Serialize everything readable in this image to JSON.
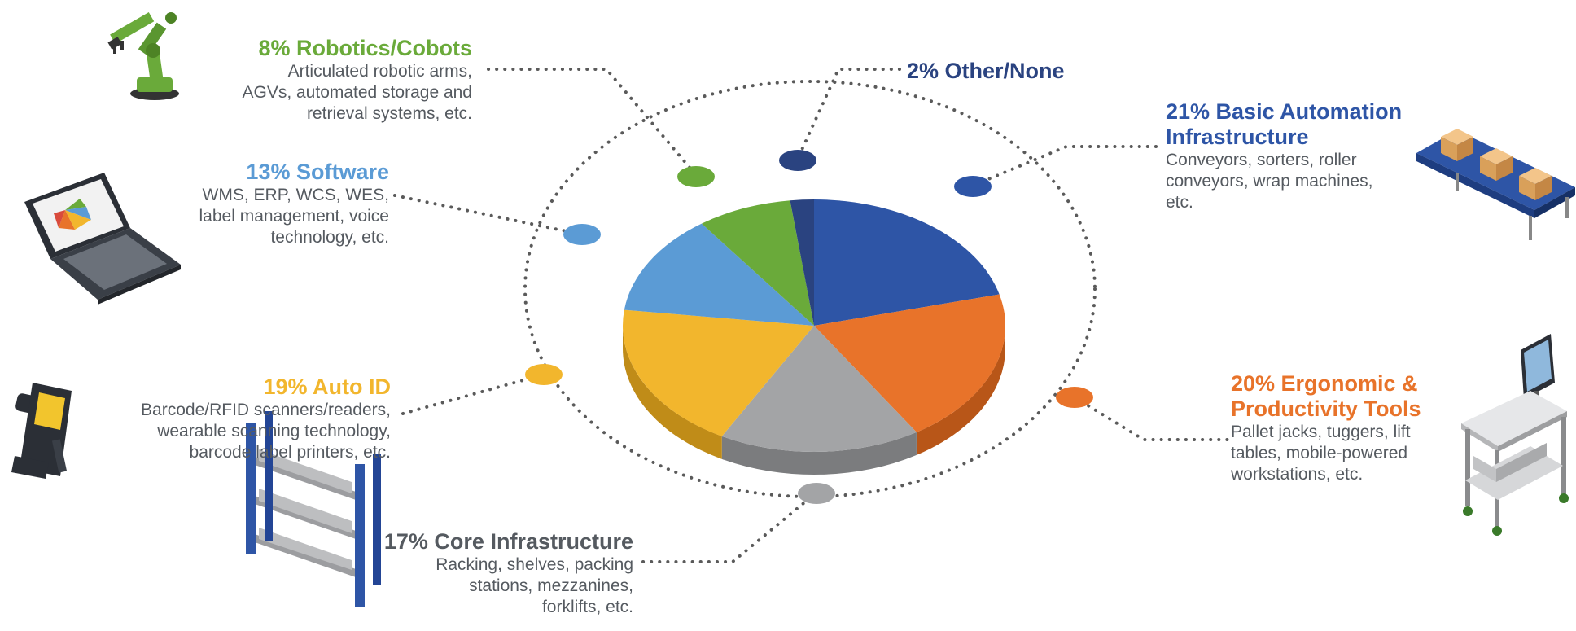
{
  "chart_data": {
    "type": "pie",
    "title": "",
    "slices": [
      {
        "label": "Basic Automation Infrastructure",
        "value": 21,
        "color": "#2e55a6",
        "side": "#1e3d80"
      },
      {
        "label": "Ergonomic & Productivity Tools",
        "value": 20,
        "color": "#e8732a",
        "side": "#b85618"
      },
      {
        "label": "Core Infrastructure",
        "value": 17,
        "color": "#a3a4a6",
        "side": "#7b7c7e"
      },
      {
        "label": "Auto ID",
        "value": 19,
        "color": "#f2b62d",
        "side": "#c08c18"
      },
      {
        "label": "Software",
        "value": 13,
        "color": "#5b9bd5",
        "side": "#3d76ab"
      },
      {
        "label": "Robotics/Cobots",
        "value": 8,
        "color": "#6aaa3a",
        "side": "#4d8325"
      },
      {
        "label": "Other/None",
        "value": 2,
        "color": "#2a4380",
        "side": "#1b2d5a"
      }
    ]
  },
  "labels": {
    "robotics": {
      "title": "8% Robotics/Cobots",
      "lines": [
        "Articulated robotic arms,",
        "AGVs, automated storage and",
        "retrieval systems, etc."
      ],
      "color": "#6aaa3a"
    },
    "other": {
      "title": "2% Other/None",
      "lines": [],
      "color": "#2a4380"
    },
    "basic": {
      "title_lines": [
        "21% Basic Automation",
        "Infrastructure"
      ],
      "lines": [
        "Conveyors, sorters, roller",
        "conveyors, wrap machines,",
        "etc."
      ],
      "color": "#2e55a6"
    },
    "software": {
      "title": "13% Software",
      "lines": [
        "WMS, ERP, WCS, WES,",
        "label management, voice",
        "technology, etc."
      ],
      "color": "#5b9bd5"
    },
    "autoid": {
      "title": "19% Auto ID",
      "lines": [
        "Barcode/RFID scanners/readers,",
        "wearable scanning technology,",
        "barcode label printers, etc."
      ],
      "color": "#f2b62d"
    },
    "ergonomic": {
      "title_lines": [
        "20% Ergonomic &",
        "Productivity Tools"
      ],
      "lines": [
        "Pallet jacks, tuggers, lift",
        "tables, mobile-powered",
        "workstations, etc."
      ],
      "color": "#e8732a"
    },
    "core": {
      "title": "17% Core Infrastructure",
      "lines": [
        "Racking, shelves, packing",
        "stations, mezzanines,",
        "forklifts, etc."
      ],
      "color": "#555a60"
    }
  },
  "icons": {
    "robot": "robot-arm-icon",
    "laptop": "laptop-icon",
    "scanner": "barcode-scanner-icon",
    "rack": "storage-rack-icon",
    "conveyor": "conveyor-icon",
    "workstation": "mobile-workstation-icon"
  }
}
